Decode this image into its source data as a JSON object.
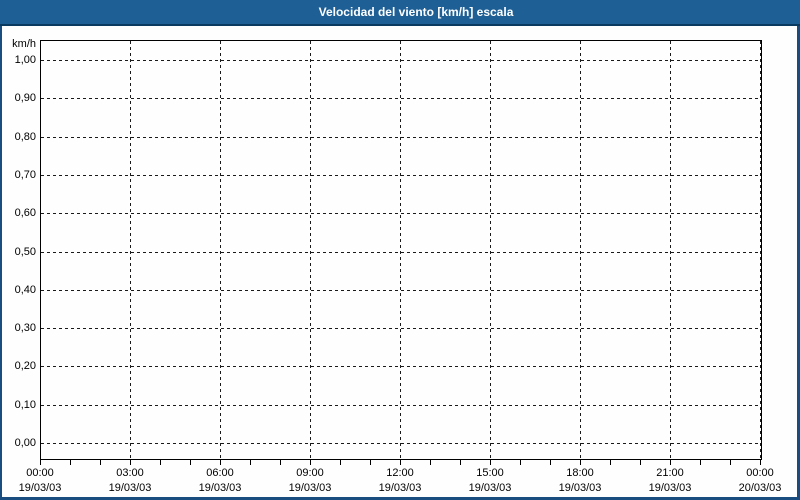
{
  "window": {
    "title": "Velocidad del viento [km/h] escala",
    "colors": {
      "titlebar_bg": "#1e5f96",
      "titlebar_underline": "#0b3a60",
      "frame_border": "#1a4d7f",
      "background": "#fefefe",
      "plot_border": "#000000",
      "gridline": "#1a1a1a",
      "label_text": "#000000",
      "title_text": "#ffffff"
    }
  },
  "chart_data": {
    "type": "line",
    "title": "Velocidad del viento [km/h] escala",
    "ylabel": "km/h",
    "xlabel": "",
    "ylim": [
      0.0,
      1.0
    ],
    "y_tick_step": 0.1,
    "y_tick_labels": [
      "1,00",
      "0,90",
      "0,80",
      "0,70",
      "0,60",
      "0,50",
      "0,40",
      "0,30",
      "0,20",
      "0,10",
      "0,00"
    ],
    "x_major_ticks": [
      {
        "time": "00:00",
        "date": "19/03/03"
      },
      {
        "time": "03:00",
        "date": "19/03/03"
      },
      {
        "time": "06:00",
        "date": "19/03/03"
      },
      {
        "time": "09:00",
        "date": "19/03/03"
      },
      {
        "time": "12:00",
        "date": "19/03/03"
      },
      {
        "time": "15:00",
        "date": "19/03/03"
      },
      {
        "time": "18:00",
        "date": "19/03/03"
      },
      {
        "time": "21:00",
        "date": "19/03/03"
      },
      {
        "time": "00:00",
        "date": "20/03/03"
      }
    ],
    "x_minor_ticks_per_major": 3,
    "x_total_hours": 24,
    "grid": "dashed",
    "legend": "none",
    "series": []
  }
}
